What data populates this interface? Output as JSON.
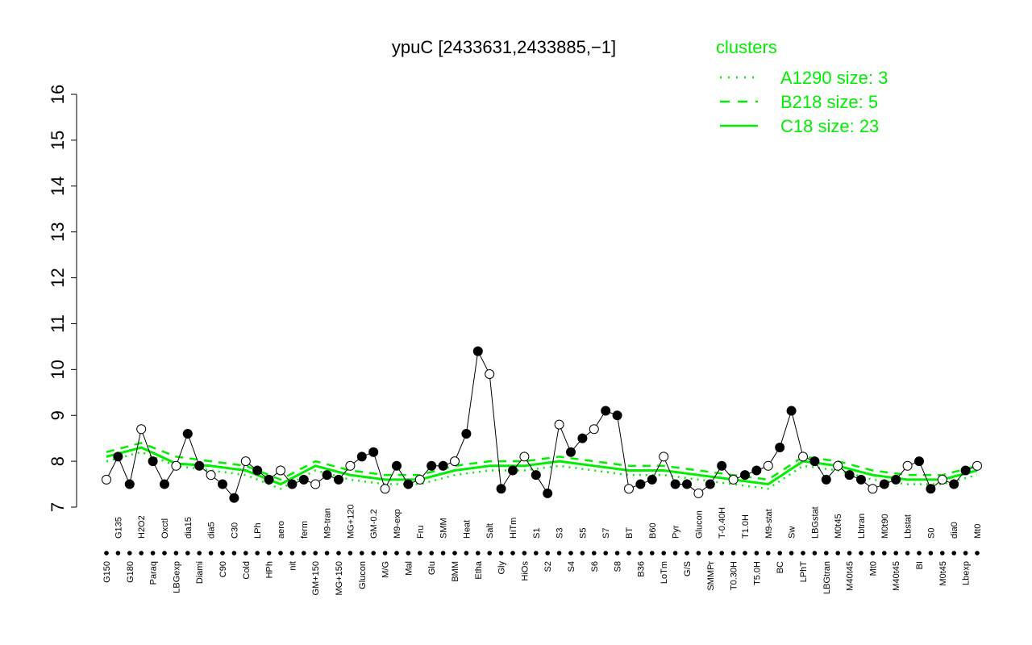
{
  "chart_data": {
    "type": "line",
    "title": "ypuC [2433631,2433885,−1]",
    "xlabel": "",
    "ylabel": "",
    "ylim": [
      7,
      16
    ],
    "yticks": [
      7,
      8,
      9,
      10,
      11,
      12,
      13,
      14,
      15,
      16
    ],
    "grid": false,
    "legend_position": "top-right",
    "legend_title": "clusters",
    "color": "#00ee00",
    "legend": [
      {
        "label": "A1290 size: 3",
        "style": "dotted"
      },
      {
        "label": "B218 size: 5",
        "style": "dashed"
      },
      {
        "label": "C18 size: 23",
        "style": "solid"
      }
    ],
    "x_tick_labels": [
      "G150",
      "G135",
      "G180",
      "H2O2",
      "Paraq",
      "Oxctl",
      "LBGexp",
      "dia15",
      "Diami",
      "dia5",
      "C90",
      "C30",
      "Cold",
      "LPh",
      "HPh",
      "aero",
      "nit",
      "ferm",
      "GM+150",
      "M9-tran",
      "MG+150",
      "MG+120",
      "Glucon",
      "GM-0.2",
      "M/G",
      "M9-exp",
      "Mal",
      "Fru",
      "Glu",
      "SMM",
      "BMM",
      "Heat",
      "Etha",
      "Salt",
      "Gly",
      "HiTm",
      "HiOs",
      "S1",
      "S2",
      "S3",
      "S4",
      "S5",
      "S6",
      "S7",
      "S8",
      "BT",
      "B36",
      "B60",
      "LoTm",
      "Pyr",
      "G/S",
      "Glucon",
      "SMMPr",
      "T-0.40H",
      "T0.30H",
      "T1.0H",
      "T5.0H",
      "M9-stat",
      "BC",
      "Sw",
      "LPhT",
      "LBGstat",
      "LBGtran",
      "M0t45",
      "M40t45",
      "Lbtran",
      "Mt0",
      "M0t90",
      "M40t45",
      "Lbstat",
      "BI",
      "S0",
      "M0t45",
      "dia0",
      "Lbexp",
      "Mt0"
    ],
    "series": [
      {
        "name": "C18 size: 23",
        "style": "solid",
        "x": [
          0,
          3,
          6,
          9,
          12,
          15,
          18,
          21,
          24,
          27,
          30,
          33,
          36,
          39,
          42,
          45,
          48,
          51,
          54,
          57,
          60,
          63,
          66,
          69,
          72,
          75
        ],
        "values": [
          8.1,
          8.3,
          7.95,
          7.9,
          7.8,
          7.5,
          7.9,
          7.7,
          7.6,
          7.6,
          7.8,
          7.9,
          7.9,
          8.0,
          7.9,
          7.8,
          7.8,
          7.7,
          7.6,
          7.5,
          8.0,
          7.9,
          7.7,
          7.6,
          7.6,
          7.8
        ]
      },
      {
        "name": "B218 size: 5",
        "style": "dashed",
        "x": [
          0,
          3,
          6,
          9,
          12,
          15,
          18,
          21,
          24,
          27,
          30,
          33,
          36,
          39,
          42,
          45,
          48,
          51,
          54,
          57,
          60,
          63,
          66,
          69,
          72,
          75
        ],
        "values": [
          8.2,
          8.4,
          8.1,
          8.0,
          7.9,
          7.6,
          8.0,
          7.8,
          7.7,
          7.7,
          7.9,
          8.0,
          8.0,
          8.1,
          8.0,
          7.9,
          7.9,
          7.8,
          7.7,
          7.6,
          8.1,
          8.0,
          7.8,
          7.7,
          7.7,
          7.9
        ]
      },
      {
        "name": "A1290 size: 3",
        "style": "dotted",
        "x": [
          0,
          3,
          6,
          9,
          12,
          15,
          18,
          21,
          24,
          27,
          30,
          33,
          36,
          39,
          42,
          45,
          48,
          51,
          54,
          57,
          60,
          63,
          66,
          69,
          72,
          75
        ],
        "values": [
          8.0,
          8.2,
          7.9,
          7.8,
          7.7,
          7.4,
          7.8,
          7.6,
          7.5,
          7.5,
          7.7,
          7.8,
          7.8,
          7.9,
          7.8,
          7.7,
          7.7,
          7.6,
          7.5,
          7.4,
          7.9,
          7.8,
          7.6,
          7.5,
          7.5,
          7.7
        ]
      }
    ],
    "points": [
      {
        "label": "G150",
        "value": 7.6
      },
      {
        "label": "G135",
        "value": 8.1
      },
      {
        "label": "G180",
        "value": 7.5
      },
      {
        "label": "H2O2",
        "value": 8.7
      },
      {
        "label": "Paraq",
        "value": 8.0
      },
      {
        "label": "Oxctl",
        "value": 7.5
      },
      {
        "label": "LBGexp",
        "value": 7.9
      },
      {
        "label": "dia15",
        "value": 8.6
      },
      {
        "label": "Diami",
        "value": 7.9
      },
      {
        "label": "dia5",
        "value": 7.7
      },
      {
        "label": "C90",
        "value": 7.5
      },
      {
        "label": "C30",
        "value": 7.2
      },
      {
        "label": "Cold",
        "value": 8.0
      },
      {
        "label": "LPh",
        "value": 7.8
      },
      {
        "label": "HPh",
        "value": 7.6
      },
      {
        "label": "aero",
        "value": 7.8
      },
      {
        "label": "nit",
        "value": 7.5
      },
      {
        "label": "ferm",
        "value": 7.6
      },
      {
        "label": "GM+150",
        "value": 7.5
      },
      {
        "label": "M9-tran",
        "value": 7.7
      },
      {
        "label": "MG+150",
        "value": 7.6
      },
      {
        "label": "MG+120",
        "value": 7.9
      },
      {
        "label": "Glucon",
        "value": 8.1
      },
      {
        "label": "GM-0.2",
        "value": 8.2
      },
      {
        "label": "M/G",
        "value": 7.4
      },
      {
        "label": "M9-exp",
        "value": 7.9
      },
      {
        "label": "Mal",
        "value": 7.5
      },
      {
        "label": "Fru",
        "value": 7.6
      },
      {
        "label": "Glu",
        "value": 7.9
      },
      {
        "label": "SMM",
        "value": 7.9
      },
      {
        "label": "BMM",
        "value": 8.0
      },
      {
        "label": "Heat",
        "value": 8.6
      },
      {
        "label": "Etha",
        "value": 10.4
      },
      {
        "label": "Salt",
        "value": 9.9
      },
      {
        "label": "Gly",
        "value": 7.4
      },
      {
        "label": "HiTm",
        "value": 7.8
      },
      {
        "label": "HiOs",
        "value": 8.1
      },
      {
        "label": "S1",
        "value": 7.7
      },
      {
        "label": "S2",
        "value": 7.3
      },
      {
        "label": "S3",
        "value": 8.8
      },
      {
        "label": "S4",
        "value": 8.2
      },
      {
        "label": "S5",
        "value": 8.5
      },
      {
        "label": "S6",
        "value": 8.7
      },
      {
        "label": "S7",
        "value": 9.1
      },
      {
        "label": "S8",
        "value": 9.0
      },
      {
        "label": "BT",
        "value": 7.4
      },
      {
        "label": "B36",
        "value": 7.5
      },
      {
        "label": "B60",
        "value": 7.6
      },
      {
        "label": "LoTm",
        "value": 8.1
      },
      {
        "label": "Pyr",
        "value": 7.5
      },
      {
        "label": "G/S",
        "value": 7.5
      },
      {
        "label": "Glucon",
        "value": 7.3
      },
      {
        "label": "SMMPr",
        "value": 7.5
      },
      {
        "label": "T-0.40H",
        "value": 7.9
      },
      {
        "label": "T0.30H",
        "value": 7.6
      },
      {
        "label": "T1.0H",
        "value": 7.7
      },
      {
        "label": "T5.0H",
        "value": 7.8
      },
      {
        "label": "M9-stat",
        "value": 7.9
      },
      {
        "label": "BC",
        "value": 8.3
      },
      {
        "label": "Sw",
        "value": 9.1
      },
      {
        "label": "LPhT",
        "value": 8.1
      },
      {
        "label": "LBGstat",
        "value": 8.0
      },
      {
        "label": "LBGtran",
        "value": 7.6
      },
      {
        "label": "M0t45",
        "value": 7.9
      },
      {
        "label": "M40t45",
        "value": 7.7
      },
      {
        "label": "Lbtran",
        "value": 7.6
      },
      {
        "label": "Mt0",
        "value": 7.4
      },
      {
        "label": "M0t90",
        "value": 7.5
      },
      {
        "label": "M40t45",
        "value": 7.6
      },
      {
        "label": "Lbstat",
        "value": 7.9
      },
      {
        "label": "BI",
        "value": 8.0
      },
      {
        "label": "S0",
        "value": 7.4
      },
      {
        "label": "M0t45",
        "value": 7.6
      },
      {
        "label": "dia0",
        "value": 7.5
      },
      {
        "label": "Lbexp",
        "value": 7.8
      },
      {
        "label": "Mt0",
        "value": 7.9
      }
    ]
  }
}
